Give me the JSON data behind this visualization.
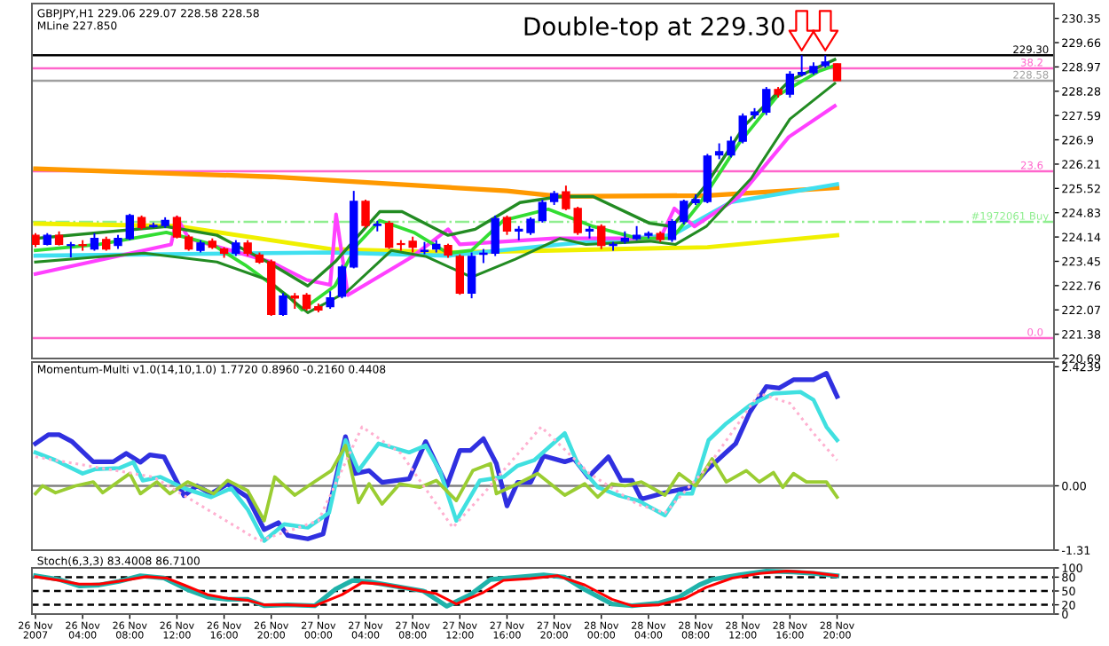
{
  "chart_data": [
    {
      "type": "candlestick",
      "title": "GBPJPY,H1 229.06 229.07 228.58 228.58",
      "subtitle": "MLine 227.850",
      "annotations": [
        "Double-top at 229.30",
        {
          "text": "38.2",
          "x": "2007-11-29T13:30",
          "y": 228.93
        },
        {
          "text": "23.6",
          "x": "2007-11-29T13:30",
          "y": 226.01
        },
        {
          "text": "0.0",
          "x": "2007-11-29T13:30",
          "y": 221.27
        }
      ],
      "x": [
        "2007-11-26T00:00",
        "2007-11-26T01:00",
        "2007-11-26T02:00",
        "2007-11-26T03:00",
        "2007-11-26T04:00",
        "2007-11-26T05:00",
        "2007-11-26T06:00",
        "2007-11-26T07:00",
        "2007-11-26T08:00",
        "2007-11-26T09:00",
        "2007-11-26T10:00",
        "2007-11-26T11:00",
        "2007-11-26T12:00",
        "2007-11-26T13:00",
        "2007-11-26T14:00",
        "2007-11-26T15:00",
        "2007-11-26T16:00",
        "2007-11-26T17:00",
        "2007-11-26T18:00",
        "2007-11-26T19:00",
        "2007-11-26T20:00",
        "2007-11-26T21:00",
        "2007-11-26T22:00",
        "2007-11-26T23:00",
        "2007-11-27T00:00",
        "2007-11-27T01:00",
        "2007-11-27T02:00",
        "2007-11-27T03:00",
        "2007-11-27T04:00",
        "2007-11-27T05:00",
        "2007-11-27T06:00",
        "2007-11-27T07:00",
        "2007-11-27T08:00",
        "2007-11-27T09:00",
        "2007-11-27T10:00",
        "2007-11-27T11:00",
        "2007-11-27T12:00",
        "2007-11-27T13:00",
        "2007-11-27T14:00",
        "2007-11-27T15:00",
        "2007-11-27T16:00",
        "2007-11-27T17:00",
        "2007-11-27T18:00",
        "2007-11-27T19:00",
        "2007-11-27T20:00",
        "2007-11-27T21:00",
        "2007-11-27T22:00",
        "2007-11-27T23:00",
        "2007-11-28T00:00",
        "2007-11-28T01:00",
        "2007-11-28T02:00",
        "2007-11-28T03:00",
        "2007-11-28T04:00",
        "2007-11-28T05:00",
        "2007-11-28T06:00",
        "2007-11-28T07:00",
        "2007-11-28T08:00",
        "2007-11-28T09:00",
        "2007-11-28T10:00",
        "2007-11-28T11:00",
        "2007-11-28T12:00",
        "2007-11-28T13:00",
        "2007-11-28T14:00",
        "2007-11-28T15:00",
        "2007-11-28T16:00",
        "2007-11-28T17:00",
        "2007-11-28T18:00",
        "2007-11-28T19:00",
        "2007-11-28T20:00"
      ],
      "ohlc": [
        [
          224.19,
          224.25,
          223.85,
          223.93
        ],
        [
          223.93,
          224.25,
          223.9,
          224.19
        ],
        [
          224.19,
          224.3,
          223.9,
          223.93
        ],
        [
          223.9,
          224.0,
          223.56,
          223.92
        ],
        [
          223.92,
          224.05,
          223.75,
          223.9
        ],
        [
          223.8,
          224.25,
          223.75,
          224.1
        ],
        [
          224.07,
          224.15,
          223.75,
          223.8
        ],
        [
          223.9,
          224.2,
          223.8,
          224.1
        ],
        [
          224.1,
          224.8,
          224.05,
          224.75
        ],
        [
          224.69,
          224.75,
          224.35,
          224.41
        ],
        [
          224.44,
          224.55,
          224.4,
          224.47
        ],
        [
          224.47,
          224.7,
          224.4,
          224.61
        ],
        [
          224.69,
          224.75,
          224.1,
          224.14
        ],
        [
          224.14,
          224.2,
          223.75,
          223.8
        ],
        [
          223.76,
          224.05,
          223.7,
          223.97
        ],
        [
          224.02,
          224.1,
          223.8,
          223.85
        ],
        [
          223.8,
          223.85,
          223.55,
          223.68
        ],
        [
          223.68,
          224.05,
          223.6,
          223.97
        ],
        [
          223.97,
          224.05,
          223.6,
          223.68
        ],
        [
          223.63,
          223.7,
          223.38,
          223.43
        ],
        [
          223.43,
          223.5,
          221.9,
          221.94
        ],
        [
          221.94,
          222.55,
          221.9,
          222.46
        ],
        [
          222.46,
          222.55,
          222.1,
          222.41
        ],
        [
          222.49,
          222.55,
          222.05,
          222.11
        ],
        [
          222.16,
          222.25,
          222.0,
          222.07
        ],
        [
          222.16,
          222.6,
          222.1,
          222.41
        ],
        [
          222.46,
          223.35,
          222.4,
          223.29
        ],
        [
          223.29,
          225.45,
          223.25,
          225.15
        ],
        [
          225.15,
          225.2,
          224.4,
          224.47
        ],
        [
          224.47,
          224.6,
          224.3,
          224.5
        ],
        [
          224.53,
          224.6,
          223.8,
          223.85
        ],
        [
          223.95,
          224.05,
          223.75,
          223.93
        ],
        [
          224.02,
          224.15,
          223.7,
          223.85
        ],
        [
          223.73,
          224.0,
          223.65,
          223.76
        ],
        [
          223.8,
          224.05,
          223.7,
          223.93
        ],
        [
          223.9,
          223.95,
          223.55,
          223.63
        ],
        [
          223.59,
          223.65,
          222.5,
          222.55
        ],
        [
          222.55,
          223.7,
          222.4,
          223.59
        ],
        [
          223.65,
          223.8,
          223.4,
          223.68
        ],
        [
          223.68,
          224.75,
          223.6,
          224.66
        ],
        [
          224.69,
          224.75,
          224.2,
          224.31
        ],
        [
          224.31,
          224.45,
          224.05,
          224.36
        ],
        [
          224.27,
          224.7,
          224.2,
          224.64
        ],
        [
          224.61,
          225.2,
          224.55,
          225.12
        ],
        [
          225.15,
          225.45,
          225.05,
          225.37
        ],
        [
          225.42,
          225.6,
          224.9,
          224.95
        ],
        [
          224.95,
          225.0,
          224.2,
          224.27
        ],
        [
          224.31,
          224.45,
          224.1,
          224.36
        ],
        [
          224.44,
          224.5,
          223.8,
          223.9
        ],
        [
          223.9,
          224.0,
          223.75,
          223.93
        ],
        [
          224.02,
          224.3,
          223.95,
          224.1
        ],
        [
          224.1,
          224.45,
          224.05,
          224.19
        ],
        [
          224.19,
          224.3,
          224.1,
          224.24
        ],
        [
          224.24,
          224.3,
          224.0,
          224.07
        ],
        [
          224.07,
          224.65,
          224.0,
          224.58
        ],
        [
          224.58,
          225.2,
          224.5,
          225.15
        ],
        [
          225.12,
          225.35,
          225.05,
          225.2
        ],
        [
          225.15,
          226.5,
          225.1,
          226.44
        ],
        [
          226.47,
          226.8,
          226.35,
          226.56
        ],
        [
          226.47,
          227.0,
          226.4,
          226.86
        ],
        [
          226.86,
          227.65,
          226.8,
          227.57
        ],
        [
          227.61,
          227.8,
          227.5,
          227.69
        ],
        [
          227.69,
          228.4,
          227.6,
          228.33
        ],
        [
          228.33,
          228.4,
          228.1,
          228.2
        ],
        [
          228.2,
          228.85,
          228.1,
          228.76
        ],
        [
          228.76,
          229.3,
          228.7,
          228.81
        ],
        [
          228.81,
          229.1,
          228.75,
          228.98
        ],
        [
          229.01,
          229.3,
          228.95,
          229.11
        ],
        [
          229.06,
          229.07,
          228.58,
          228.58
        ]
      ],
      "colors": [
        "#ff0000",
        "#0000ff",
        "#ff0000",
        "#0000ff",
        "#ff0000",
        "#0000ff",
        "#ff0000",
        "#0000ff",
        "#0000ff",
        "#ff0000",
        "#0000ff",
        "#0000ff",
        "#ff0000",
        "#ff0000",
        "#0000ff",
        "#ff0000",
        "#ff0000",
        "#0000ff",
        "#ff0000",
        "#ff0000",
        "#ff0000",
        "#0000ff",
        "#ff0000",
        "#ff0000",
        "#ff0000",
        "#0000ff",
        "#0000ff",
        "#0000ff",
        "#ff0000",
        "#0000ff",
        "#ff0000",
        "#ff0000",
        "#ff0000",
        "#0000ff",
        "#0000ff",
        "#ff0000",
        "#ff0000",
        "#0000ff",
        "#0000ff",
        "#0000ff",
        "#ff0000",
        "#0000ff",
        "#0000ff",
        "#0000ff",
        "#0000ff",
        "#ff0000",
        "#ff0000",
        "#0000ff",
        "#ff0000",
        "#0000ff",
        "#0000ff",
        "#0000ff",
        "#0000ff",
        "#ff0000",
        "#0000ff",
        "#0000ff",
        "#0000ff",
        "#0000ff",
        "#0000ff",
        "#0000ff",
        "#0000ff",
        "#0000ff",
        "#0000ff",
        "#ff0000",
        "#0000ff",
        "#0000ff",
        "#0000ff",
        "#0000ff",
        "#ff0000"
      ],
      "series": [
        {
          "type": "line",
          "color": "#ff9900",
          "x": [
            "2007-11-26T00:00",
            "2007-11-26T20:00",
            "2007-11-27T16:00",
            "2007-11-27T20:30",
            "2007-11-28T09:00",
            "2007-11-28T20:00"
          ],
          "values": [
            226.08,
            225.85,
            225.45,
            225.29,
            225.32,
            225.54
          ]
        },
        {
          "type": "line",
          "color": "#f0f000",
          "x": [
            "2007-11-26T00:00",
            "2007-11-26T12:00",
            "2007-11-27T01:00",
            "2007-11-27T11:00",
            "2007-11-27T19:00",
            "2007-11-28T09:00",
            "2007-11-28T20:00"
          ],
          "values": [
            224.52,
            224.45,
            223.8,
            223.7,
            223.75,
            223.85,
            224.19
          ]
        },
        {
          "type": "line",
          "color": "#40e0f0",
          "x": [
            "2007-11-26T00:00",
            "2007-11-27T01:00",
            "2007-11-27T11:00",
            "2007-11-27T20:30",
            "2007-11-28T06:00",
            "2007-11-28T11:00",
            "2007-11-28T20:00"
          ],
          "values": [
            223.61,
            223.7,
            223.61,
            223.93,
            224.19,
            225.13,
            225.64
          ]
        },
        {
          "type": "line",
          "color": "#ff40ff",
          "x": [
            "2007-11-26T00:00",
            "2007-11-26T11:30",
            "2007-11-26T12:00",
            "2007-11-26T13:00",
            "2007-11-26T20:00",
            "2007-11-26T23:00",
            "2007-11-27T01:00",
            "2007-11-27T01:30",
            "2007-11-27T02:30",
            "2007-11-27T08:00",
            "2007-11-27T11:00",
            "2007-11-27T12:00",
            "2007-11-27T20:00",
            "2007-11-27T23:00",
            "2007-11-28T05:00",
            "2007-11-28T06:12",
            "2007-11-28T07:54",
            "2007-11-28T11:42",
            "2007-11-28T15:54",
            "2007-11-28T19:48"
          ],
          "values": [
            223.09,
            223.93,
            224.69,
            224.1,
            223.43,
            222.92,
            222.78,
            224.78,
            222.49,
            223.59,
            224.36,
            223.93,
            224.1,
            224.1,
            224.1,
            224.95,
            224.44,
            225.29,
            226.98,
            227.86
          ]
        },
        {
          "type": "line",
          "color": "#33dd33",
          "x": [
            "2007-11-26T00:00",
            "2007-11-26T05:24",
            "2007-11-26T11:06",
            "2007-11-26T15:00",
            "2007-11-26T17:48",
            "2007-11-26T21:36",
            "2007-11-26T22:36",
            "2007-11-27T01:24",
            "2007-11-27T03:18",
            "2007-11-27T05:12",
            "2007-11-27T08:06",
            "2007-11-27T11:00",
            "2007-11-27T13:00",
            "2007-11-27T15:42",
            "2007-11-27T19:30",
            "2007-11-27T23:18",
            "2007-11-28T03:06",
            "2007-11-28T06:00",
            "2007-11-28T08:24",
            "2007-11-28T11:42",
            "2007-11-28T15:00",
            "2007-11-28T18:24",
            "2007-11-28T19:48"
          ],
          "values": [
            223.76,
            223.93,
            224.27,
            223.93,
            223.34,
            222.41,
            222.07,
            222.75,
            223.93,
            224.61,
            224.27,
            223.68,
            223.76,
            224.61,
            224.93,
            224.44,
            224.1,
            224.1,
            225.12,
            226.81,
            228.17,
            228.84,
            229.01
          ]
        },
        {
          "type": "line",
          "color": "#228b22",
          "x": [
            "2007-11-26T00:00",
            "2007-11-26T11:06",
            "2007-11-26T15:24",
            "2007-11-26T19:42",
            "2007-11-26T23:06",
            "2007-11-27T01:24",
            "2007-11-27T05:12",
            "2007-11-27T07:06",
            "2007-11-27T11:00",
            "2007-11-27T13:18",
            "2007-11-27T17:06",
            "2007-11-27T20:30",
            "2007-11-27T23:18",
            "2007-11-28T04:06",
            "2007-11-28T06:00",
            "2007-11-28T08:54",
            "2007-11-28T12:12",
            "2007-11-28T16:00",
            "2007-11-28T19:48"
          ],
          "values": [
            224.1,
            224.44,
            224.19,
            223.43,
            222.75,
            223.43,
            224.86,
            224.86,
            224.19,
            224.36,
            225.12,
            225.29,
            225.29,
            224.53,
            224.44,
            225.63,
            227.32,
            228.59,
            229.18
          ]
        },
        {
          "type": "line",
          "color": "#228b22",
          "x": [
            "2007-11-26T00:00",
            "2007-11-26T09:12",
            "2007-11-26T15:24",
            "2007-11-26T19:42",
            "2007-11-26T23:06",
            "2007-11-27T02:24",
            "2007-11-27T06:12",
            "2007-11-27T09:06",
            "2007-11-27T13:00",
            "2007-11-27T16:42",
            "2007-11-27T20:30",
            "2007-11-27T22:42",
            "2007-11-28T04:06",
            "2007-11-28T06:18",
            "2007-11-28T08:54",
            "2007-11-28T12:42",
            "2007-11-28T16:00",
            "2007-11-28T19:48"
          ],
          "values": [
            223.43,
            223.68,
            223.43,
            222.92,
            221.99,
            222.58,
            223.76,
            223.59,
            223.0,
            223.51,
            224.1,
            223.93,
            224.02,
            223.93,
            224.44,
            225.8,
            227.49,
            228.5
          ]
        }
      ],
      "xlim": [
        "2007-11-25T23:42",
        "2007-11-29T14:24"
      ],
      "ylim": [
        220.69,
        230.77
      ],
      "yticks": [
        220.69,
        221.38,
        222.07,
        222.76,
        223.45,
        224.14,
        224.83,
        225.52,
        226.21,
        226.9,
        227.59,
        228.28,
        228.97,
        229.66,
        230.35
      ],
      "ref_lines": [
        {
          "axis": "y",
          "value": 229.3,
          "label": "229.30",
          "color": "#000000",
          "line_style": "solid"
        },
        {
          "axis": "y",
          "value": 228.93,
          "color": "#ff66cc",
          "line_style": "solid"
        },
        {
          "axis": "y",
          "value": 228.58,
          "label": "228.58",
          "color": "#a0a0a0",
          "line_style": "solid"
        },
        {
          "axis": "y",
          "value": 226.01,
          "color": "#ff66cc",
          "line_style": "solid"
        },
        {
          "axis": "y",
          "value": 224.57,
          "label": "#1972061 Buy",
          "color": "#90ee90",
          "line_style": "dashdot"
        },
        {
          "axis": "y",
          "value": 221.27,
          "color": "#ff66cc",
          "line_style": "solid"
        }
      ],
      "tick_labels": "y"
    },
    {
      "type": "line",
      "title": "Momentum-Multi v1.0(14,10,1.0) 1.7720 0.8960 -0.2160 0.4408",
      "series": [
        {
          "color": "#3030e0",
          "x": [
            "2007-11-26T00:00",
            "2007-11-26T01:06",
            "2007-11-26T02:00",
            "2007-11-26T03:06",
            "2007-11-26T04:54",
            "2007-11-26T06:36",
            "2007-11-26T07:42",
            "2007-11-26T08:54",
            "2007-11-26T09:42",
            "2007-11-26T10:54",
            "2007-11-26T12:36",
            "2007-11-26T13:42",
            "2007-11-26T14:54",
            "2007-11-26T16:18",
            "2007-11-26T18:00",
            "2007-11-26T19:24",
            "2007-11-26T20:36",
            "2007-11-26T21:24",
            "2007-11-26T23:06",
            "2007-11-27T00:24",
            "2007-11-27T02:18",
            "2007-11-27T03:06",
            "2007-11-27T04:18",
            "2007-11-27T05:24",
            "2007-11-27T07:42",
            "2007-11-27T09:06",
            "2007-11-27T10:54",
            "2007-11-27T12:00",
            "2007-11-27T12:54",
            "2007-11-27T14:00",
            "2007-11-27T15:06",
            "2007-11-27T16:00",
            "2007-11-27T16:54",
            "2007-11-27T18:00",
            "2007-11-27T19:06",
            "2007-11-27T20:54",
            "2007-11-27T21:42",
            "2007-11-27T22:54",
            "2007-11-28T00:36",
            "2007-11-28T01:42",
            "2007-11-28T02:36",
            "2007-11-28T03:24",
            "2007-11-28T05:24",
            "2007-11-28T07:42",
            "2007-11-28T08:54",
            "2007-11-28T11:24",
            "2007-11-28T12:36",
            "2007-11-28T14:00",
            "2007-11-28T15:06",
            "2007-11-28T16:18",
            "2007-11-28T18:00",
            "2007-11-28T19:06",
            "2007-11-28T20:00"
          ],
          "values": [
            0.86,
            1.04,
            1.04,
            0.9,
            0.49,
            0.49,
            0.66,
            0.48,
            0.63,
            0.59,
            -0.2,
            0.0,
            -0.16,
            0.04,
            -0.23,
            -0.89,
            -0.75,
            -1.01,
            -1.08,
            -0.98,
            1.0,
            0.25,
            0.31,
            0.07,
            0.14,
            0.9,
            0.0,
            0.72,
            0.72,
            0.96,
            0.45,
            -0.41,
            0.07,
            0.07,
            0.61,
            0.49,
            0.55,
            0.18,
            0.59,
            0.11,
            0.11,
            -0.27,
            -0.14,
            -0.03,
            0.31,
            0.86,
            1.5,
            2.02,
            1.99,
            2.16,
            2.16,
            2.29,
            1.82
          ]
        },
        {
          "color": "#40e0e0",
          "x": [
            "2007-11-26T00:00",
            "2007-11-26T01:42",
            "2007-11-26T04:00",
            "2007-11-26T05:06",
            "2007-11-26T07:06",
            "2007-11-26T08:18",
            "2007-11-26T09:06",
            "2007-11-26T10:36",
            "2007-11-26T12:36",
            "2007-11-26T14:54",
            "2007-11-26T16:36",
            "2007-11-26T18:00",
            "2007-11-26T19:24",
            "2007-11-26T21:06",
            "2007-11-26T23:06",
            "2007-11-27T00:54",
            "2007-11-27T02:18",
            "2007-11-27T03:24",
            "2007-11-27T05:06",
            "2007-11-27T07:42",
            "2007-11-27T09:06",
            "2007-11-27T10:18",
            "2007-11-27T11:42",
            "2007-11-27T13:42",
            "2007-11-27T15:42",
            "2007-11-27T16:54",
            "2007-11-27T18:18",
            "2007-11-27T20:54",
            "2007-11-27T22:00",
            "2007-11-27T23:42",
            "2007-11-28T01:24",
            "2007-11-28T03:06",
            "2007-11-28T05:24",
            "2007-11-28T06:36",
            "2007-11-28T07:42",
            "2007-11-28T09:06",
            "2007-11-28T10:36",
            "2007-11-28T12:36",
            "2007-11-28T14:36",
            "2007-11-28T16:54",
            "2007-11-28T18:00",
            "2007-11-28T19:06",
            "2007-11-28T20:00"
          ],
          "values": [
            0.68,
            0.52,
            0.25,
            0.34,
            0.36,
            0.48,
            0.11,
            0.18,
            -0.05,
            -0.23,
            -0.05,
            -0.48,
            -1.12,
            -0.78,
            -0.85,
            -0.55,
            0.93,
            0.31,
            0.86,
            0.68,
            0.82,
            0.31,
            -0.71,
            0.11,
            0.18,
            0.41,
            0.52,
            1.07,
            0.45,
            -0.03,
            -0.19,
            -0.3,
            -0.6,
            -0.16,
            -0.16,
            0.93,
            1.27,
            1.64,
            1.88,
            1.91,
            1.75,
            1.2,
            0.93
          ]
        },
        {
          "color": "#9acd32",
          "x": [
            "2007-11-26T00:00",
            "2007-11-26T00:36",
            "2007-11-26T01:42",
            "2007-11-26T03:24",
            "2007-11-26T04:54",
            "2007-11-26T05:42",
            "2007-11-26T08:00",
            "2007-11-26T08:54",
            "2007-11-26T10:18",
            "2007-11-26T11:24",
            "2007-11-26T12:54",
            "2007-11-26T15:06",
            "2007-11-26T16:18",
            "2007-11-26T18:00",
            "2007-11-26T19:24",
            "2007-11-26T20:18",
            "2007-11-26T22:00",
            "2007-11-26T23:24",
            "2007-11-27T01:06",
            "2007-11-27T02:18",
            "2007-11-27T03:24",
            "2007-11-27T04:18",
            "2007-11-27T05:24",
            "2007-11-27T06:54",
            "2007-11-27T08:36",
            "2007-11-27T10:00",
            "2007-11-27T11:42",
            "2007-11-27T13:06",
            "2007-11-27T14:36",
            "2007-11-27T15:06",
            "2007-11-27T16:54",
            "2007-11-27T18:36",
            "2007-11-27T20:54",
            "2007-11-27T22:36",
            "2007-11-27T23:42",
            "2007-11-28T00:54",
            "2007-11-28T02:00",
            "2007-11-28T03:24",
            "2007-11-28T05:24",
            "2007-11-28T06:36",
            "2007-11-28T08:00",
            "2007-11-28T09:24",
            "2007-11-28T10:36",
            "2007-11-28T12:18",
            "2007-11-28T13:24",
            "2007-11-28T14:36",
            "2007-11-28T15:24",
            "2007-11-28T16:18",
            "2007-11-28T17:24",
            "2007-11-28T19:06",
            "2007-11-28T20:00"
          ],
          "values": [
            -0.16,
            0.0,
            -0.14,
            0.0,
            0.08,
            -0.14,
            0.25,
            -0.16,
            0.08,
            -0.16,
            0.08,
            -0.16,
            0.11,
            -0.1,
            -0.71,
            0.18,
            -0.19,
            0.04,
            0.31,
            0.82,
            -0.34,
            0.04,
            -0.37,
            0.04,
            -0.03,
            0.11,
            -0.3,
            0.31,
            0.45,
            -0.16,
            0.04,
            0.25,
            -0.19,
            0.04,
            -0.23,
            0.04,
            0.0,
            0.08,
            -0.19,
            0.25,
            0.0,
            0.55,
            0.08,
            0.31,
            0.08,
            0.27,
            -0.03,
            0.25,
            0.08,
            0.08,
            -0.23
          ]
        },
        {
          "color": "#ffb0d0",
          "line_style": "dotted",
          "x": [
            "2007-11-26T00:00",
            "2007-11-26T10:00",
            "2007-11-26T19:00",
            "2007-11-27T00:00",
            "2007-11-27T03:42",
            "2007-11-27T07:00",
            "2007-11-27T11:24",
            "2007-11-27T14:00",
            "2007-11-27T18:54",
            "2007-11-27T23:00",
            "2007-11-28T03:00",
            "2007-11-28T05:24",
            "2007-11-28T09:00",
            "2007-11-28T13:24",
            "2007-11-28T16:00",
            "2007-11-28T18:00",
            "2007-11-28T20:00"
          ],
          "values": [
            0.59,
            0.18,
            -1.12,
            -0.71,
            1.2,
            0.66,
            -0.85,
            -0.16,
            1.2,
            0.25,
            -0.37,
            -0.55,
            0.38,
            1.88,
            1.68,
            1.07,
            0.52
          ]
        }
      ],
      "xlim": [
        "2007-11-25T23:42",
        "2007-11-29T14:24"
      ],
      "ylim": [
        -1.31,
        2.52
      ],
      "yticks": [
        2.4239,
        {
          "value": 0,
          "label": "0.00"
        },
        -1.31
      ],
      "ref_lines": [
        {
          "axis": "y",
          "value": 0,
          "color": "#808080",
          "line_style": "solid"
        }
      ],
      "tick_labels": "y"
    },
    {
      "type": "line",
      "title": "Stoch(6,3,3) 83.4008 86.7100",
      "series": [
        {
          "color": "#20b2aa",
          "x": [
            "2007-11-26T00:00",
            "2007-11-26T02:00",
            "2007-11-26T03:42",
            "2007-11-26T05:24",
            "2007-11-26T07:06",
            "2007-11-26T08:54",
            "2007-11-26T10:54",
            "2007-11-26T12:54",
            "2007-11-26T14:36",
            "2007-11-26T16:18",
            "2007-11-26T18:00",
            "2007-11-26T19:24",
            "2007-11-26T21:24",
            "2007-11-26T23:42",
            "2007-11-27T01:24",
            "2007-11-27T02:54",
            "2007-11-27T04:18",
            "2007-11-27T06:36",
            "2007-11-27T08:54",
            "2007-11-27T10:54",
            "2007-11-27T12:54",
            "2007-11-27T14:36",
            "2007-11-27T16:54",
            "2007-11-27T19:06",
            "2007-11-27T20:54",
            "2007-11-27T22:36",
            "2007-11-28T00:54",
            "2007-11-28T02:36",
            "2007-11-28T04:54",
            "2007-11-28T06:36",
            "2007-11-28T08:18",
            "2007-11-28T09:24",
            "2007-11-28T11:42",
            "2007-11-28T14:00",
            "2007-11-28T16:18",
            "2007-11-28T18:00",
            "2007-11-28T20:00"
          ],
          "values": [
            83,
            75,
            61,
            63,
            71,
            83,
            78,
            53,
            37,
            32,
            32,
            18,
            20,
            18,
            53,
            73,
            70,
            60,
            50,
            17,
            42,
            75,
            80,
            85,
            80,
            53,
            22,
            18,
            24,
            37,
            63,
            75,
            85,
            93,
            91,
            88,
            83
          ]
        },
        {
          "color": "#ff0000",
          "x": [
            "2007-11-26T00:00",
            "2007-11-26T02:00",
            "2007-11-26T03:42",
            "2007-11-26T05:24",
            "2007-11-26T07:06",
            "2007-11-26T09:24",
            "2007-11-26T11:06",
            "2007-11-26T12:36",
            "2007-11-26T14:36",
            "2007-11-26T16:18",
            "2007-11-26T18:00",
            "2007-11-26T19:24",
            "2007-11-26T21:24",
            "2007-11-26T23:42",
            "2007-11-27T02:00",
            "2007-11-27T03:42",
            "2007-11-27T05:24",
            "2007-11-27T07:42",
            "2007-11-27T10:00",
            "2007-11-27T11:42",
            "2007-11-27T14:00",
            "2007-11-27T15:42",
            "2007-11-27T18:00",
            "2007-11-27T20:18",
            "2007-11-27T22:36",
            "2007-11-28T00:54",
            "2007-11-28T02:36",
            "2007-11-28T04:54",
            "2007-11-28T07:06",
            "2007-11-28T08:54",
            "2007-11-28T11:06",
            "2007-11-28T13:24",
            "2007-11-28T15:42",
            "2007-11-28T18:00",
            "2007-11-28T20:00"
          ],
          "values": [
            81,
            73,
            65,
            65,
            71,
            81,
            78,
            63,
            42,
            34,
            30,
            20,
            20,
            18,
            42,
            68,
            65,
            55,
            44,
            22,
            47,
            73,
            77,
            83,
            63,
            32,
            18,
            20,
            34,
            58,
            78,
            88,
            93,
            90,
            83
          ]
        }
      ],
      "xlim": [
        "2007-11-25T23:42",
        "2007-11-29T14:24"
      ],
      "ylim": [
        0,
        100
      ],
      "yticks": [
        100,
        80,
        50,
        20,
        0
      ],
      "xticks": [
        {
          "value": "2007-11-26T00:00",
          "label": "26 Nov 2007"
        },
        {
          "value": "2007-11-26T04:00",
          "label": "26 Nov 04:00"
        },
        {
          "value": "2007-11-26T08:00",
          "label": "26 Nov 08:00"
        },
        {
          "value": "2007-11-26T12:00",
          "label": "26 Nov 12:00"
        },
        {
          "value": "2007-11-26T16:00",
          "label": "26 Nov 16:00"
        },
        {
          "value": "2007-11-26T20:00",
          "label": "26 Nov 20:00"
        },
        {
          "value": "2007-11-27T00:00",
          "label": "27 Nov 00:00"
        },
        {
          "value": "2007-11-27T04:00",
          "label": "27 Nov 04:00"
        },
        {
          "value": "2007-11-27T08:00",
          "label": "27 Nov 08:00"
        },
        {
          "value": "2007-11-27T12:00",
          "label": "27 Nov 12:00"
        },
        {
          "value": "2007-11-27T16:00",
          "label": "27 Nov 16:00"
        },
        {
          "value": "2007-11-27T20:00",
          "label": "27 Nov 20:00"
        },
        {
          "value": "2007-11-28T00:00",
          "label": "28 Nov 00:00"
        },
        {
          "value": "2007-11-28T04:00",
          "label": "28 Nov 04:00"
        },
        {
          "value": "2007-11-28T08:00",
          "label": "28 Nov 08:00"
        },
        {
          "value": "2007-11-28T12:00",
          "label": "28 Nov 12:00"
        },
        {
          "value": "2007-11-28T16:00",
          "label": "28 Nov 16:00"
        },
        {
          "value": "2007-11-28T20:00",
          "label": "28 Nov 20:00"
        }
      ],
      "ref_lines": [
        {
          "axis": "y",
          "value": 80,
          "color": "#000000",
          "line_style": "dashed"
        },
        {
          "axis": "y",
          "value": 50,
          "color": "#000000",
          "line_style": "dashed"
        },
        {
          "axis": "y",
          "value": 20,
          "color": "#000000",
          "line_style": "dashed"
        }
      ]
    }
  ]
}
